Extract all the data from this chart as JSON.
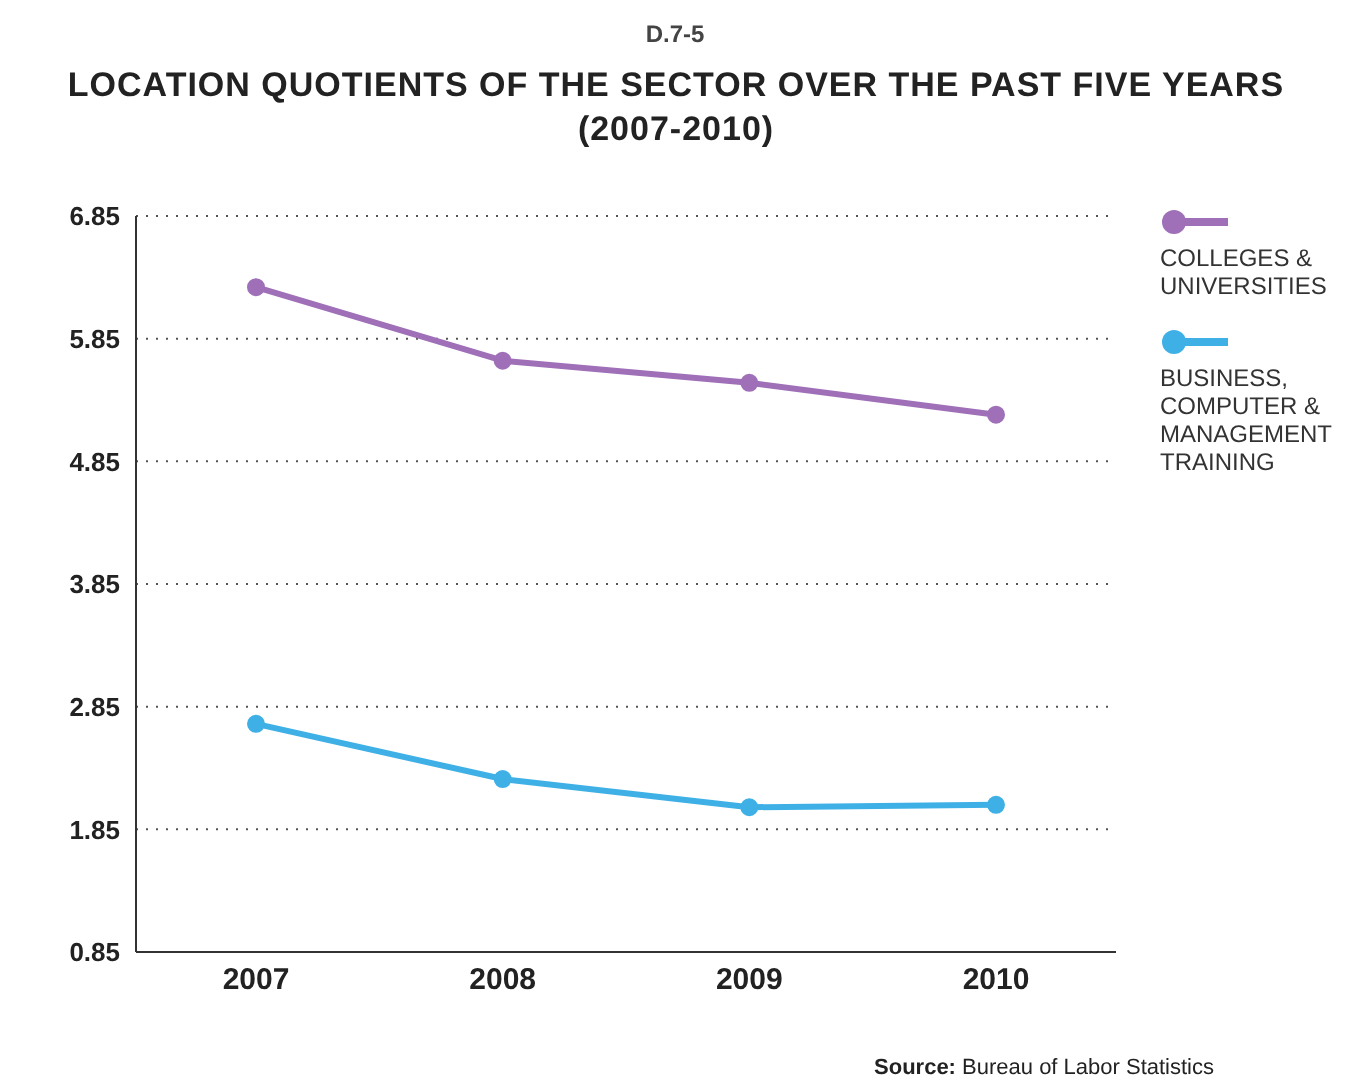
{
  "chart_data": {
    "type": "line",
    "subtitle": "D.7-5",
    "title": "LOCATION QUOTIENTS OF THE SECTOR OVER THE PAST FIVE YEARS (2007-2010)",
    "categories": [
      "2007",
      "2008",
      "2009",
      "2010"
    ],
    "series": [
      {
        "name": "COLLEGES & UNIVERSITIES",
        "color": "#9f6fb8",
        "values": [
          6.27,
          5.67,
          5.49,
          5.23
        ]
      },
      {
        "name": "BUSINESS, COMPUTER & MANAGEMENT TRAINING",
        "color": "#3fb0e6",
        "values": [
          2.71,
          2.26,
          2.03,
          2.05
        ]
      }
    ],
    "ylim": [
      0.85,
      6.85
    ],
    "yticks": [
      0.85,
      1.85,
      2.85,
      3.85,
      4.85,
      5.85,
      6.85
    ],
    "grid": "y",
    "legend": "right",
    "marker": "circle",
    "line_style": "solid",
    "annotations": [
      "Source: Bureau of Labor Statistics"
    ]
  }
}
